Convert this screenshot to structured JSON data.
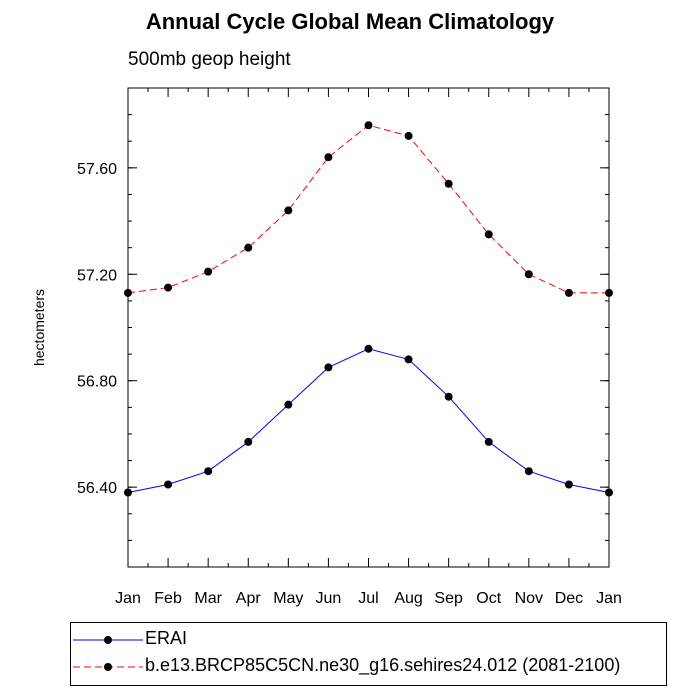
{
  "chart_data": {
    "type": "line",
    "title": "Annual Cycle Global Mean Climatology",
    "subtitle": "500mb geop height",
    "xlabel": "",
    "ylabel": "hectometers",
    "categories": [
      "Jan",
      "Feb",
      "Mar",
      "Apr",
      "May",
      "Jun",
      "Jul",
      "Aug",
      "Sep",
      "Oct",
      "Nov",
      "Dec",
      "Jan"
    ],
    "ylim": [
      56.1,
      57.9
    ],
    "yticks": [
      "56.40",
      "56.80",
      "57.20",
      "57.60"
    ],
    "series": [
      {
        "name": "ERAI",
        "color": "#0000ff",
        "style": "solid",
        "values": [
          56.38,
          56.41,
          56.46,
          56.57,
          56.71,
          56.85,
          56.92,
          56.88,
          56.74,
          56.57,
          56.46,
          56.41,
          56.38
        ]
      },
      {
        "name": "b.e13.BRCP85C5CN.ne30_g16.sehires24.012 (2081-2100)",
        "color": "#ff0000",
        "style": "dashed",
        "values": [
          57.13,
          57.15,
          57.21,
          57.3,
          57.44,
          57.64,
          57.76,
          57.72,
          57.54,
          57.35,
          57.2,
          57.13,
          57.13
        ]
      }
    ],
    "legend_placement": "bottom"
  }
}
